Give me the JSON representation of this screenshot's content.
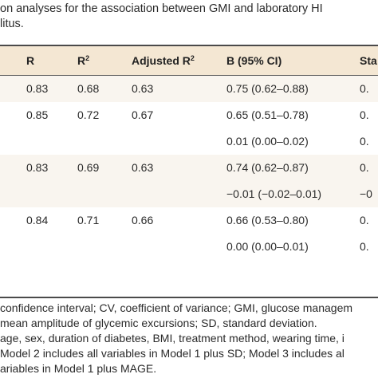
{
  "caption": {
    "line1": "on analyses for the association between GMI and laboratory HI",
    "line2": "litus."
  },
  "table": {
    "headers": {
      "r": "R",
      "r2_base": "R",
      "r2_sup": "2",
      "adj_r2_base": "Adjusted R",
      "adj_r2_sup": "2",
      "b_ci": "B (95% CI)",
      "sta": "Sta"
    },
    "rows": [
      {
        "r": "0.83",
        "r2": "0.68",
        "adj": "0.63",
        "b": "0.75 (0.62–0.88)",
        "s": "0."
      },
      {
        "r": "0.85",
        "r2": "0.72",
        "adj": "0.67",
        "b": "0.65 (0.51–0.78)",
        "s": "0."
      },
      {
        "r": "",
        "r2": "",
        "adj": "",
        "b": "0.01 (0.00–0.02)",
        "s": "0."
      },
      {
        "r": "0.83",
        "r2": "0.69",
        "adj": "0.63",
        "b": "0.74 (0.62–0.87)",
        "s": "0."
      },
      {
        "r": "",
        "r2": "",
        "adj": "",
        "b": "−0.01 (−0.02–0.01)",
        "s": "−0"
      },
      {
        "r": "0.84",
        "r2": "0.71",
        "adj": "0.66",
        "b": "0.66 (0.53–0.80)",
        "s": "0."
      },
      {
        "r": "",
        "r2": "",
        "adj": "",
        "b": "0.00 (0.00–0.01)",
        "s": "0."
      }
    ]
  },
  "notes": {
    "line1": " confidence interval; CV, coefficient of variance; GMI, glucose managem",
    "line2": "mean amplitude of glycemic excursions; SD, standard deviation.",
    "line3": "age, sex, duration of diabetes, BMI, treatment method, wearing time, i",
    "line4": " Model 2 includes all variables in Model 1 plus SD; Model 3 includes al",
    "line5": "ariables in Model 1 plus MAGE."
  },
  "colors": {
    "header_bg": "#f4e7d3",
    "band_bg": "#f9f5ef",
    "rule": "#4a4a4a"
  }
}
